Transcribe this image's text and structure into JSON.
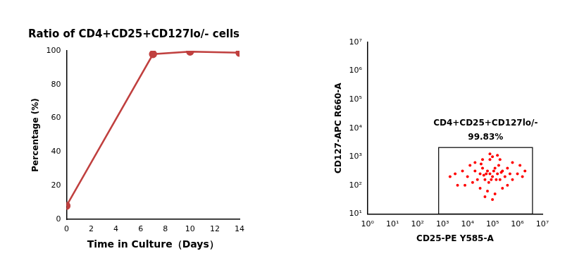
{
  "chart_data": [
    {
      "type": "line",
      "title": "Ratio of CD4+CD25+CD127lo/- cells",
      "x_label": "Time in Culture（Days）",
      "y_label": "Percentage (%)",
      "x": [
        0,
        7,
        10,
        14
      ],
      "values": [
        8,
        98,
        99.5,
        98.8
      ],
      "color": "#c0403f",
      "marker": "circle",
      "xlim": [
        0,
        14
      ],
      "xticks": [
        0,
        2,
        4,
        6,
        8,
        10,
        12,
        14
      ],
      "ylim": [
        0,
        100
      ],
      "yticks": [
        0,
        20,
        40,
        60,
        80,
        100
      ],
      "grid": false
    },
    {
      "type": "scatter",
      "x_label": "CD25-PE Y585-A",
      "y_label": "CD127-APC R660-A",
      "log": true,
      "color": "#ff0000",
      "x": [
        79000,
        100000,
        63000,
        126000,
        50000,
        158000,
        40000,
        200000,
        32000,
        251000,
        25000,
        316000,
        20000,
        398000,
        16000,
        501000,
        10000,
        631000,
        6300,
        1000000,
        4000,
        1260000,
        79000,
        100000,
        63000,
        126000,
        40000,
        200000,
        32000,
        251000,
        79000,
        158000,
        50000,
        100000,
        20000,
        398000,
        12600,
        631000,
        7900,
        1580000,
        3200,
        89000,
        112000,
        71000,
        141000,
        56000,
        178000,
        45000,
        224000,
        35000,
        2000,
        2000000
      ],
      "values": [
        251,
        200,
        316,
        398,
        158,
        251,
        398,
        158,
        251,
        316,
        158,
        200,
        316,
        398,
        126,
        251,
        200,
        158,
        316,
        251,
        100,
        501,
        794,
        1000,
        63,
        50,
        794,
        794,
        79,
        79,
        1260,
        1120,
        40,
        32,
        631,
        100,
        501,
        631,
        100,
        200,
        251,
        158,
        316,
        126,
        158,
        251,
        501,
        224,
        282,
        562,
        200,
        316
      ],
      "gate": {
        "name": "CD4+CD25+CD127lo/-",
        "value": 99.83,
        "value_label": "99.83%",
        "xrange": [
          700,
          4000000
        ],
        "yrange": [
          10,
          2100
        ]
      },
      "xlim": [
        1,
        10000000
      ],
      "xticks": [
        {
          "value": 1,
          "label": "10⁰"
        },
        {
          "value": 10,
          "label": "10¹"
        },
        {
          "value": 100,
          "label": "10²"
        },
        {
          "value": 1000,
          "label": "10³"
        },
        {
          "value": 10000,
          "label": "10⁴"
        },
        {
          "value": 100000,
          "label": "10⁵"
        },
        {
          "value": 1000000,
          "label": "10⁶"
        },
        {
          "value": 10000000,
          "label": "10⁷"
        }
      ],
      "ylim": [
        10,
        10000000
      ],
      "yticks": [
        {
          "value": 10,
          "label": "10¹"
        },
        {
          "value": 100,
          "label": "10²"
        },
        {
          "value": 1000,
          "label": "10³"
        },
        {
          "value": 10000,
          "label": "10⁴"
        },
        {
          "value": 100000,
          "label": "10⁵"
        },
        {
          "value": 1000000,
          "label": "10⁶"
        },
        {
          "value": 10000000,
          "label": "10⁷"
        }
      ],
      "grid": false
    }
  ]
}
